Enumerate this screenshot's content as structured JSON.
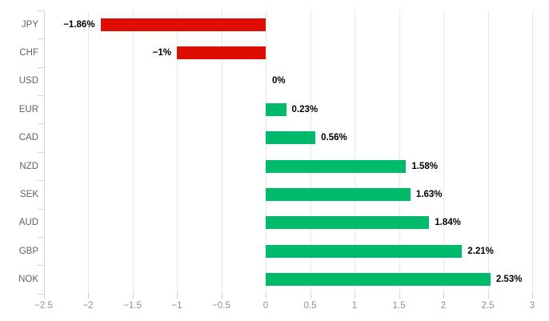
{
  "chart_data": {
    "type": "bar",
    "orientation": "horizontal",
    "title": "",
    "xlabel": "",
    "ylabel": "",
    "categories": [
      "JPY",
      "CHF",
      "USD",
      "EUR",
      "CAD",
      "NZD",
      "SEK",
      "AUD",
      "GBP",
      "NOK"
    ],
    "values": [
      -1.86,
      -1,
      0,
      0.23,
      0.56,
      1.58,
      1.63,
      1.84,
      2.21,
      2.53
    ],
    "value_labels": [
      "−1.86%",
      "−1%",
      "0%",
      "0.23%",
      "0.56%",
      "1.58%",
      "1.63%",
      "1.84%",
      "2.21%",
      "2.53%"
    ],
    "xlim": [
      -2.5,
      3
    ],
    "xticks": [
      -2.5,
      -2,
      -1.5,
      -1,
      -0.5,
      0,
      0.5,
      1,
      1.5,
      2,
      2.5,
      3
    ],
    "xtick_labels": [
      "−2.5",
      "−2",
      "−1.5",
      "−1",
      "−0.5",
      "0",
      "0.5",
      "1",
      "1.5",
      "2",
      "2.5",
      "3"
    ],
    "grid": true,
    "legend": false,
    "colors": {
      "positive_bar": "#00ba6b",
      "negative_bar": "#df0c00",
      "gridline": "#e7e7e7",
      "axis_line": "#ccd4e0",
      "value_label_text": "#000000",
      "category_label_text": "#5d626b",
      "xtick_label_text": "#8b919b",
      "background": "#ffffff"
    }
  }
}
